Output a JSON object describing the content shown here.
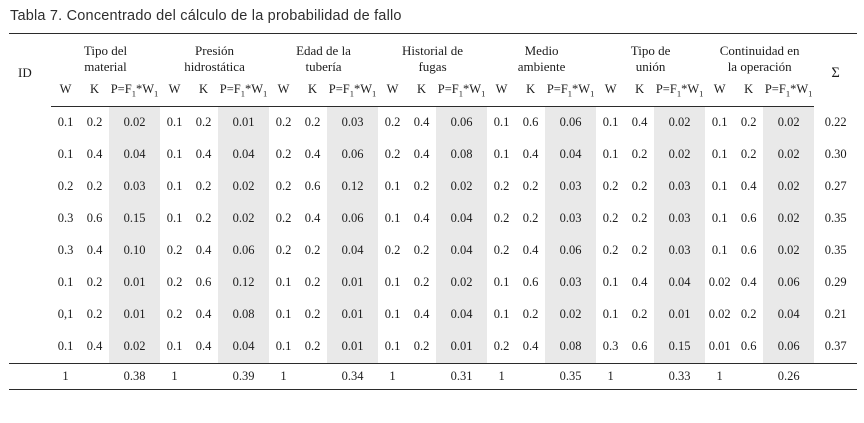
{
  "title": "Tabla 7. Concentrado del cálculo de la probabilidad de fallo",
  "table": {
    "id_header": "ID",
    "sum_header": "Σ",
    "sub": {
      "w": "W",
      "k": "K",
      "p_main": "P=F",
      "p_sub1": "1",
      "p_mid": "*W",
      "p_sub2": "1"
    },
    "groups": [
      {
        "line1": "Tipo del",
        "line2": "material"
      },
      {
        "line1": "Presión",
        "line2": "hidrostática"
      },
      {
        "line1": "Edad de la",
        "line2": "tubería"
      },
      {
        "line1": "Historial de",
        "line2": "fugas"
      },
      {
        "line1": "Medio",
        "line2": "ambiente"
      },
      {
        "line1": "Tipo de",
        "line2": "unión"
      },
      {
        "line1": "Continuidad en",
        "line2": "la operación"
      }
    ],
    "rows": [
      [
        "",
        "0.1",
        "0.2",
        "0.02",
        "0.1",
        "0.2",
        "0.01",
        "0.2",
        "0.2",
        "0.03",
        "0.2",
        "0.4",
        "0.06",
        "0.1",
        "0.6",
        "0.06",
        "0.1",
        "0.4",
        "0.02",
        "0.1",
        "0.2",
        "0.02",
        "0.22"
      ],
      [
        "",
        "0.1",
        "0.4",
        "0.04",
        "0.1",
        "0.4",
        "0.04",
        "0.2",
        "0.4",
        "0.06",
        "0.2",
        "0.4",
        "0.08",
        "0.1",
        "0.4",
        "0.04",
        "0.1",
        "0.2",
        "0.02",
        "0.1",
        "0.2",
        "0.02",
        "0.30"
      ],
      [
        "",
        "0.2",
        "0.2",
        "0.03",
        "0.1",
        "0.2",
        "0.02",
        "0.2",
        "0.6",
        "0.12",
        "0.1",
        "0.2",
        "0.02",
        "0.2",
        "0.2",
        "0.03",
        "0.2",
        "0.2",
        "0.03",
        "0.1",
        "0.4",
        "0.02",
        "0.27"
      ],
      [
        "",
        "0.3",
        "0.6",
        "0.15",
        "0.1",
        "0.2",
        "0.02",
        "0.2",
        "0.4",
        "0.06",
        "0.1",
        "0.4",
        "0.04",
        "0.2",
        "0.2",
        "0.03",
        "0.2",
        "0.2",
        "0.03",
        "0.1",
        "0.6",
        "0.02",
        "0.35"
      ],
      [
        "",
        "0.3",
        "0.4",
        "0.10",
        "0.2",
        "0.4",
        "0.06",
        "0.2",
        "0.2",
        "0.04",
        "0.2",
        "0.2",
        "0.04",
        "0.2",
        "0.4",
        "0.06",
        "0.2",
        "0.2",
        "0.03",
        "0.1",
        "0.6",
        "0.02",
        "0.35"
      ],
      [
        "",
        "0.1",
        "0.2",
        "0.01",
        "0.2",
        "0.6",
        "0.12",
        "0.1",
        "0.2",
        "0.01",
        "0.1",
        "0.2",
        "0.02",
        "0.1",
        "0.6",
        "0.03",
        "0.1",
        "0.4",
        "0.04",
        "0.02",
        "0.4",
        "0.06",
        "0.29"
      ],
      [
        "",
        "0,1",
        "0.2",
        "0.01",
        "0.2",
        "0.4",
        "0.08",
        "0.1",
        "0.2",
        "0.01",
        "0.1",
        "0.4",
        "0.04",
        "0.1",
        "0.2",
        "0.02",
        "0.1",
        "0.2",
        "0.01",
        "0.02",
        "0.2",
        "0.04",
        "0.21"
      ],
      [
        "",
        "0.1",
        "0.4",
        "0.02",
        "0.1",
        "0.4",
        "0.04",
        "0.1",
        "0.2",
        "0.01",
        "0.1",
        "0.2",
        "0.01",
        "0.2",
        "0.4",
        "0.08",
        "0.3",
        "0.6",
        "0.15",
        "0.01",
        "0.6",
        "0.06",
        "0.37"
      ]
    ],
    "total_row": [
      "",
      "1",
      "",
      "0.38",
      "1",
      "",
      "0.39",
      "1",
      "",
      "0.34",
      "1",
      "",
      "0.31",
      "1",
      "",
      "0.35",
      "1",
      "",
      "0.33",
      "1",
      "",
      "0.26",
      ""
    ]
  },
  "chart_data": {
    "type": "table",
    "title": "Tabla 7. Concentrado del cálculo de la probabilidad de fallo",
    "factor_groups": [
      "Tipo del material",
      "Presión hidrostática",
      "Edad de la tubería",
      "Historial de fugas",
      "Medio ambiente",
      "Tipo de unión",
      "Continuidad en la operación"
    ],
    "subcolumns_per_group": [
      "W",
      "K",
      "P=F1*W1"
    ],
    "sum_column": "Σ",
    "row_sums": [
      0.22,
      0.3,
      0.27,
      0.35,
      0.35,
      0.29,
      0.21,
      0.37
    ],
    "column_totals": {
      "W_each_group": 1,
      "P_totals": [
        0.38,
        0.39,
        0.34,
        0.31,
        0.35,
        0.33,
        0.26
      ]
    }
  }
}
